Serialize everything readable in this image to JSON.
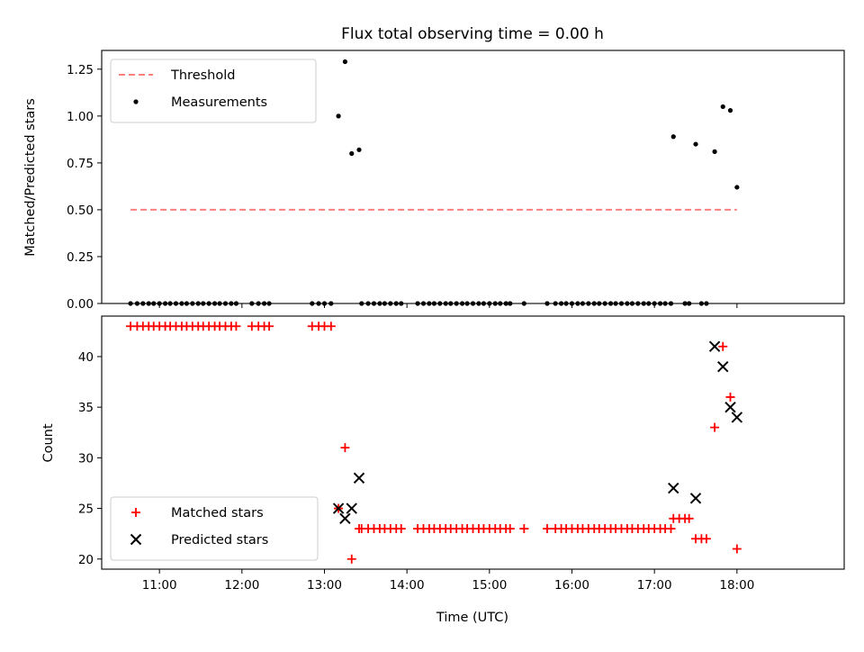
{
  "chart_data": [
    {
      "type": "scatter",
      "title": "Flux total observing time = 0.00 h",
      "ylabel": "Matched/Predicted stars",
      "xlabel": "",
      "xlim": [
        10.3,
        19.3
      ],
      "ylim": [
        0.0,
        1.35
      ],
      "yticks": [
        0.0,
        0.25,
        0.5,
        0.75,
        1.0,
        1.25
      ],
      "ytick_labels": [
        "0.00",
        "0.25",
        "0.50",
        "0.75",
        "1.00",
        "1.25"
      ],
      "legend_placement": "top-left",
      "threshold": {
        "name": "Threshold",
        "y": 0.5,
        "x_start": 10.65,
        "x_end": 18.0,
        "color": "#ff7f7f",
        "style": "dashed"
      },
      "series": [
        {
          "name": "Measurements",
          "color": "#000000",
          "marker": "dot",
          "points": [
            [
              10.65,
              0
            ],
            [
              10.73,
              0
            ],
            [
              10.8,
              0
            ],
            [
              10.87,
              0
            ],
            [
              10.93,
              0
            ],
            [
              11.0,
              0
            ],
            [
              11.07,
              0
            ],
            [
              11.13,
              0
            ],
            [
              11.2,
              0
            ],
            [
              11.27,
              0
            ],
            [
              11.33,
              0
            ],
            [
              11.4,
              0
            ],
            [
              11.47,
              0
            ],
            [
              11.53,
              0
            ],
            [
              11.6,
              0
            ],
            [
              11.67,
              0
            ],
            [
              11.73,
              0
            ],
            [
              11.8,
              0
            ],
            [
              11.87,
              0
            ],
            [
              11.93,
              0
            ],
            [
              12.12,
              0
            ],
            [
              12.2,
              0
            ],
            [
              12.27,
              0
            ],
            [
              12.33,
              0
            ],
            [
              12.85,
              0
            ],
            [
              12.93,
              0
            ],
            [
              13.0,
              0
            ],
            [
              13.08,
              0
            ],
            [
              13.17,
              1.0
            ],
            [
              13.25,
              1.29
            ],
            [
              13.33,
              0.8
            ],
            [
              13.42,
              0.82
            ],
            [
              13.45,
              0
            ],
            [
              13.53,
              0
            ],
            [
              13.6,
              0
            ],
            [
              13.67,
              0
            ],
            [
              13.73,
              0
            ],
            [
              13.8,
              0
            ],
            [
              13.87,
              0
            ],
            [
              13.93,
              0
            ],
            [
              14.13,
              0
            ],
            [
              14.2,
              0
            ],
            [
              14.27,
              0
            ],
            [
              14.33,
              0
            ],
            [
              14.4,
              0
            ],
            [
              14.47,
              0
            ],
            [
              14.53,
              0
            ],
            [
              14.6,
              0
            ],
            [
              14.67,
              0
            ],
            [
              14.73,
              0
            ],
            [
              14.8,
              0
            ],
            [
              14.87,
              0
            ],
            [
              14.93,
              0
            ],
            [
              15.0,
              0
            ],
            [
              15.07,
              0
            ],
            [
              15.13,
              0
            ],
            [
              15.2,
              0
            ],
            [
              15.25,
              0
            ],
            [
              15.42,
              0
            ],
            [
              15.7,
              0
            ],
            [
              15.8,
              0
            ],
            [
              15.87,
              0
            ],
            [
              15.93,
              0
            ],
            [
              16.0,
              0
            ],
            [
              16.07,
              0
            ],
            [
              16.13,
              0
            ],
            [
              16.2,
              0
            ],
            [
              16.27,
              0
            ],
            [
              16.33,
              0
            ],
            [
              16.4,
              0
            ],
            [
              16.47,
              0
            ],
            [
              16.53,
              0
            ],
            [
              16.6,
              0
            ],
            [
              16.67,
              0
            ],
            [
              16.73,
              0
            ],
            [
              16.8,
              0
            ],
            [
              16.87,
              0
            ],
            [
              16.93,
              0
            ],
            [
              17.0,
              0
            ],
            [
              17.07,
              0
            ],
            [
              17.13,
              0
            ],
            [
              17.2,
              0
            ],
            [
              17.23,
              0.89
            ],
            [
              17.37,
              0
            ],
            [
              17.42,
              0
            ],
            [
              17.5,
              0.85
            ],
            [
              17.57,
              0
            ],
            [
              17.63,
              0
            ],
            [
              17.73,
              0.81
            ],
            [
              17.83,
              1.05
            ],
            [
              17.92,
              1.03
            ],
            [
              18.0,
              0.62
            ]
          ]
        }
      ]
    },
    {
      "type": "scatter",
      "title": "",
      "xlabel": "Time (UTC)",
      "ylabel": "Count",
      "xlim": [
        10.3,
        19.3
      ],
      "ylim": [
        19,
        44
      ],
      "xticks": [
        11,
        12,
        13,
        14,
        15,
        16,
        17,
        18
      ],
      "xtick_labels": [
        "11:00",
        "12:00",
        "13:00",
        "14:00",
        "15:00",
        "16:00",
        "17:00",
        "18:00"
      ],
      "yticks": [
        20,
        25,
        30,
        35,
        40
      ],
      "ytick_labels": [
        "20",
        "25",
        "30",
        "35",
        "40"
      ],
      "legend_placement": "bottom-left",
      "series": [
        {
          "name": "Matched stars",
          "color": "#ff0000",
          "marker": "plus",
          "points": [
            [
              10.65,
              43
            ],
            [
              10.73,
              43
            ],
            [
              10.8,
              43
            ],
            [
              10.87,
              43
            ],
            [
              10.93,
              43
            ],
            [
              11.0,
              43
            ],
            [
              11.07,
              43
            ],
            [
              11.13,
              43
            ],
            [
              11.2,
              43
            ],
            [
              11.27,
              43
            ],
            [
              11.33,
              43
            ],
            [
              11.4,
              43
            ],
            [
              11.47,
              43
            ],
            [
              11.53,
              43
            ],
            [
              11.6,
              43
            ],
            [
              11.67,
              43
            ],
            [
              11.73,
              43
            ],
            [
              11.8,
              43
            ],
            [
              11.87,
              43
            ],
            [
              11.93,
              43
            ],
            [
              12.12,
              43
            ],
            [
              12.2,
              43
            ],
            [
              12.27,
              43
            ],
            [
              12.33,
              43
            ],
            [
              12.85,
              43
            ],
            [
              12.93,
              43
            ],
            [
              13.0,
              43
            ],
            [
              13.08,
              43
            ],
            [
              13.17,
              25
            ],
            [
              13.25,
              31
            ],
            [
              13.33,
              20
            ],
            [
              13.42,
              23
            ],
            [
              13.45,
              23
            ],
            [
              13.53,
              23
            ],
            [
              13.6,
              23
            ],
            [
              13.67,
              23
            ],
            [
              13.73,
              23
            ],
            [
              13.8,
              23
            ],
            [
              13.87,
              23
            ],
            [
              13.93,
              23
            ],
            [
              14.13,
              23
            ],
            [
              14.2,
              23
            ],
            [
              14.27,
              23
            ],
            [
              14.33,
              23
            ],
            [
              14.4,
              23
            ],
            [
              14.47,
              23
            ],
            [
              14.53,
              23
            ],
            [
              14.6,
              23
            ],
            [
              14.67,
              23
            ],
            [
              14.73,
              23
            ],
            [
              14.8,
              23
            ],
            [
              14.87,
              23
            ],
            [
              14.93,
              23
            ],
            [
              15.0,
              23
            ],
            [
              15.07,
              23
            ],
            [
              15.13,
              23
            ],
            [
              15.2,
              23
            ],
            [
              15.25,
              23
            ],
            [
              15.42,
              23
            ],
            [
              15.7,
              23
            ],
            [
              15.8,
              23
            ],
            [
              15.87,
              23
            ],
            [
              15.93,
              23
            ],
            [
              16.0,
              23
            ],
            [
              16.07,
              23
            ],
            [
              16.13,
              23
            ],
            [
              16.2,
              23
            ],
            [
              16.27,
              23
            ],
            [
              16.33,
              23
            ],
            [
              16.4,
              23
            ],
            [
              16.47,
              23
            ],
            [
              16.53,
              23
            ],
            [
              16.6,
              23
            ],
            [
              16.67,
              23
            ],
            [
              16.73,
              23
            ],
            [
              16.8,
              23
            ],
            [
              16.87,
              23
            ],
            [
              16.93,
              23
            ],
            [
              17.0,
              23
            ],
            [
              17.07,
              23
            ],
            [
              17.13,
              23
            ],
            [
              17.2,
              23
            ],
            [
              17.23,
              24
            ],
            [
              17.3,
              24
            ],
            [
              17.37,
              24
            ],
            [
              17.42,
              24
            ],
            [
              17.5,
              22
            ],
            [
              17.57,
              22
            ],
            [
              17.63,
              22
            ],
            [
              17.73,
              33
            ],
            [
              17.83,
              41
            ],
            [
              17.92,
              36
            ],
            [
              18.0,
              21
            ]
          ]
        },
        {
          "name": "Predicted stars",
          "color": "#000000",
          "marker": "x",
          "points": [
            [
              13.17,
              25
            ],
            [
              13.25,
              24
            ],
            [
              13.33,
              25
            ],
            [
              13.42,
              28
            ],
            [
              17.23,
              27
            ],
            [
              17.5,
              26
            ],
            [
              17.73,
              41
            ],
            [
              17.83,
              39
            ],
            [
              17.92,
              35
            ],
            [
              18.0,
              34
            ]
          ]
        }
      ]
    }
  ]
}
